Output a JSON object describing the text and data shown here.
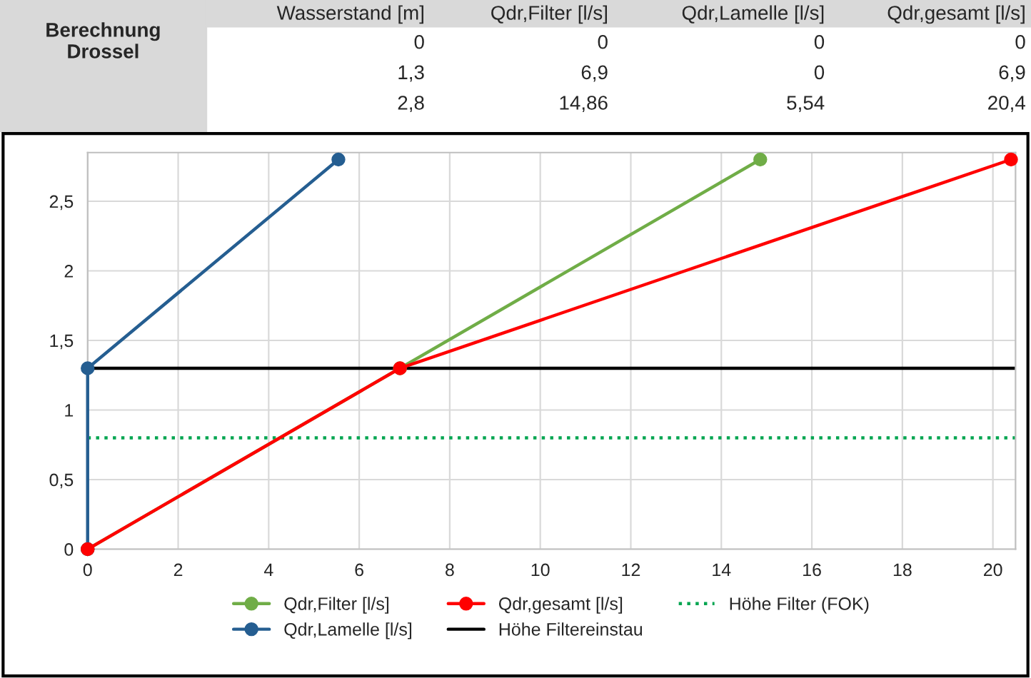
{
  "chart_data": [
    {
      "type": "other",
      "title": "Berechnung Drossel",
      "annotations": [
        "Wasserstand [m]",
        "Qdr,Filter [l/s]",
        "Qdr,Lamelle [l/s]",
        "Qdr,gesamt [l/s]",
        "0",
        "0",
        "0",
        "0",
        "1,3",
        "6,9",
        "0",
        "6,9",
        "2,8",
        "14,86",
        "5,54",
        "20,4"
      ]
    },
    {
      "type": "line",
      "series": [
        {
          "name": "Qdr,Filter [l/s]",
          "color": "#70ad47",
          "x": [
            0,
            6.9,
            14.86
          ],
          "values": [
            0,
            1.3,
            2.8
          ]
        },
        {
          "name": "Qdr,Lamelle [l/s]",
          "color": "#255e91",
          "x": [
            0,
            0,
            5.54
          ],
          "values": [
            0,
            1.3,
            2.8
          ]
        },
        {
          "name": "Qdr,gesamt [l/s]",
          "color": "#ff0000",
          "x": [
            0,
            6.9,
            20.4
          ],
          "values": [
            0,
            1.3,
            2.8
          ]
        }
      ],
      "ref_lines": [
        {
          "axis": "y",
          "value": 1.3,
          "label": "Höhe Filtereinstau",
          "color": "#000000",
          "line_style": "solid"
        },
        {
          "axis": "y",
          "value": 0.8,
          "label": "Höhe Filter (FOK)",
          "color": "#00a550",
          "line_style": "dotted"
        }
      ],
      "marker": "circle",
      "grid": true,
      "legend": "bottom",
      "xlim": [
        0,
        20.5
      ],
      "xticks": [
        0,
        2,
        4,
        6,
        8,
        10,
        12,
        14,
        16,
        18,
        20
      ],
      "ylim": [
        0,
        2.85
      ],
      "yticks": [
        0,
        {
          "value": 0.5,
          "label": "0,5"
        },
        1,
        {
          "value": 1.5,
          "label": "1,5"
        },
        2,
        {
          "value": 2.5,
          "label": "2,5"
        }
      ]
    }
  ]
}
